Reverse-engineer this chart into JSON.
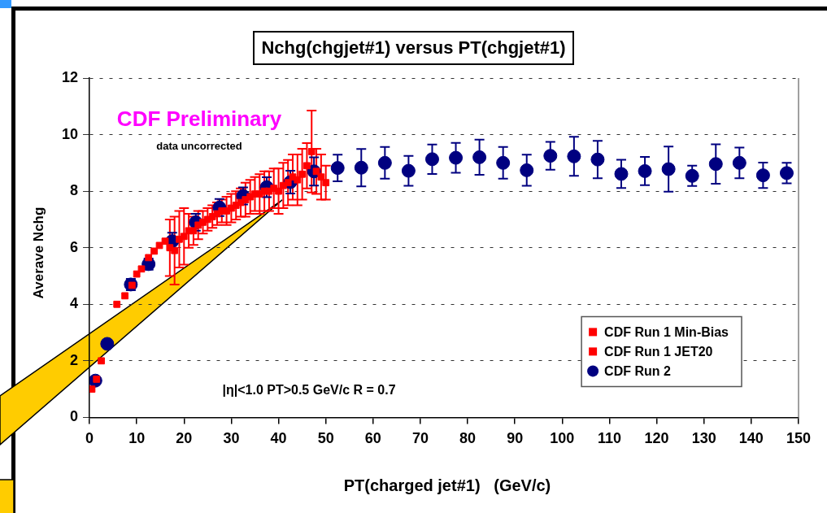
{
  "chart_data": {
    "type": "scatter",
    "title": "Nchg(chgjet#1) versus PT(chgjet#1)",
    "xlabel": "PT(charged jet#1)   (GeV/c)",
    "ylabel": "Averave Nchg",
    "xlim": [
      0,
      150
    ],
    "xticks": [
      0,
      10,
      20,
      30,
      40,
      50,
      60,
      70,
      80,
      90,
      100,
      110,
      120,
      130,
      140,
      150
    ],
    "ylim": [
      0,
      12
    ],
    "yticks": [
      0,
      2,
      4,
      6,
      8,
      10,
      12
    ],
    "grid": "y",
    "legend": "bottom right",
    "annotations": [
      "CDF Preliminary",
      "data uncorrected",
      "|η|<1.0 PT>0.5 GeV/c R = 0.7"
    ],
    "series": [
      {
        "name": "CDF Run 1 Min-Bias",
        "color": "#ff0000",
        "marker": "square",
        "x": [
          0.5,
          1.5,
          2.5,
          5.8,
          7.5,
          9,
          10,
          11,
          12.5,
          13.7,
          14.8,
          16
        ],
        "values": [
          1.0,
          1.35,
          2.0,
          4.0,
          4.3,
          4.67,
          5.07,
          5.25,
          5.65,
          5.88,
          6.08,
          6.23
        ]
      },
      {
        "name": "CDF Run 1 JET20",
        "color": "#ff0000",
        "marker": "square",
        "x": [
          17,
          18,
          19,
          20,
          21,
          22,
          23,
          24,
          25,
          26,
          27,
          28,
          29,
          30,
          31,
          32,
          33,
          34,
          35,
          36,
          37,
          38,
          39,
          40,
          41,
          42,
          43,
          44,
          45,
          46,
          47,
          48,
          49,
          50
        ],
        "values": [
          6.0,
          5.9,
          6.3,
          6.4,
          6.6,
          6.6,
          6.8,
          6.9,
          7.0,
          7.1,
          7.2,
          7.3,
          7.3,
          7.4,
          7.5,
          7.6,
          7.7,
          7.8,
          7.9,
          7.9,
          8.0,
          8.0,
          8.1,
          8.0,
          8.2,
          8.3,
          8.5,
          8.4,
          8.6,
          8.9,
          9.4,
          8.7,
          8.5,
          8.3
        ],
        "errors": [
          1.0,
          1.2,
          1.0,
          1.0,
          0.6,
          0.5,
          0.5,
          0.4,
          0.4,
          0.4,
          0.4,
          0.4,
          0.5,
          0.5,
          0.5,
          0.5,
          0.6,
          0.6,
          0.6,
          0.7,
          0.7,
          0.7,
          0.7,
          0.8,
          0.8,
          0.8,
          0.8,
          0.9,
          0.9,
          0.8,
          1.45,
          0.8,
          0.8,
          0.6
        ]
      },
      {
        "name": "CDF Run 2",
        "color": "#000080",
        "marker": "circle",
        "x": [
          1.25,
          3.75,
          8.75,
          12.5,
          17.5,
          22.5,
          27.5,
          32.5,
          37.5,
          42.5,
          47.5,
          52.5,
          57.5,
          62.5,
          67.5,
          72.5,
          77.5,
          82.5,
          87.5,
          92.5,
          97.5,
          102.5,
          107.5,
          112.5,
          117.5,
          122.5,
          127.5,
          132.5,
          137.5,
          142.5,
          147.5
        ],
        "values": [
          1.3,
          2.6,
          4.7,
          5.42,
          6.23,
          6.9,
          7.42,
          7.83,
          8.14,
          8.32,
          8.7,
          8.82,
          8.83,
          9.0,
          8.72,
          9.13,
          9.18,
          9.2,
          9.0,
          8.74,
          9.25,
          9.23,
          9.12,
          8.61,
          8.71,
          8.78,
          8.54,
          8.96,
          9.0,
          8.56,
          8.64
        ],
        "errors": [
          null,
          null,
          0.2,
          0.2,
          0.3,
          0.3,
          0.3,
          0.3,
          0.35,
          0.4,
          0.5,
          0.47,
          0.66,
          0.56,
          0.53,
          0.52,
          0.53,
          0.62,
          0.56,
          0.55,
          0.49,
          0.69,
          0.66,
          0.5,
          0.5,
          0.8,
          0.36,
          0.7,
          0.54,
          0.45,
          0.36
        ]
      }
    ]
  }
}
